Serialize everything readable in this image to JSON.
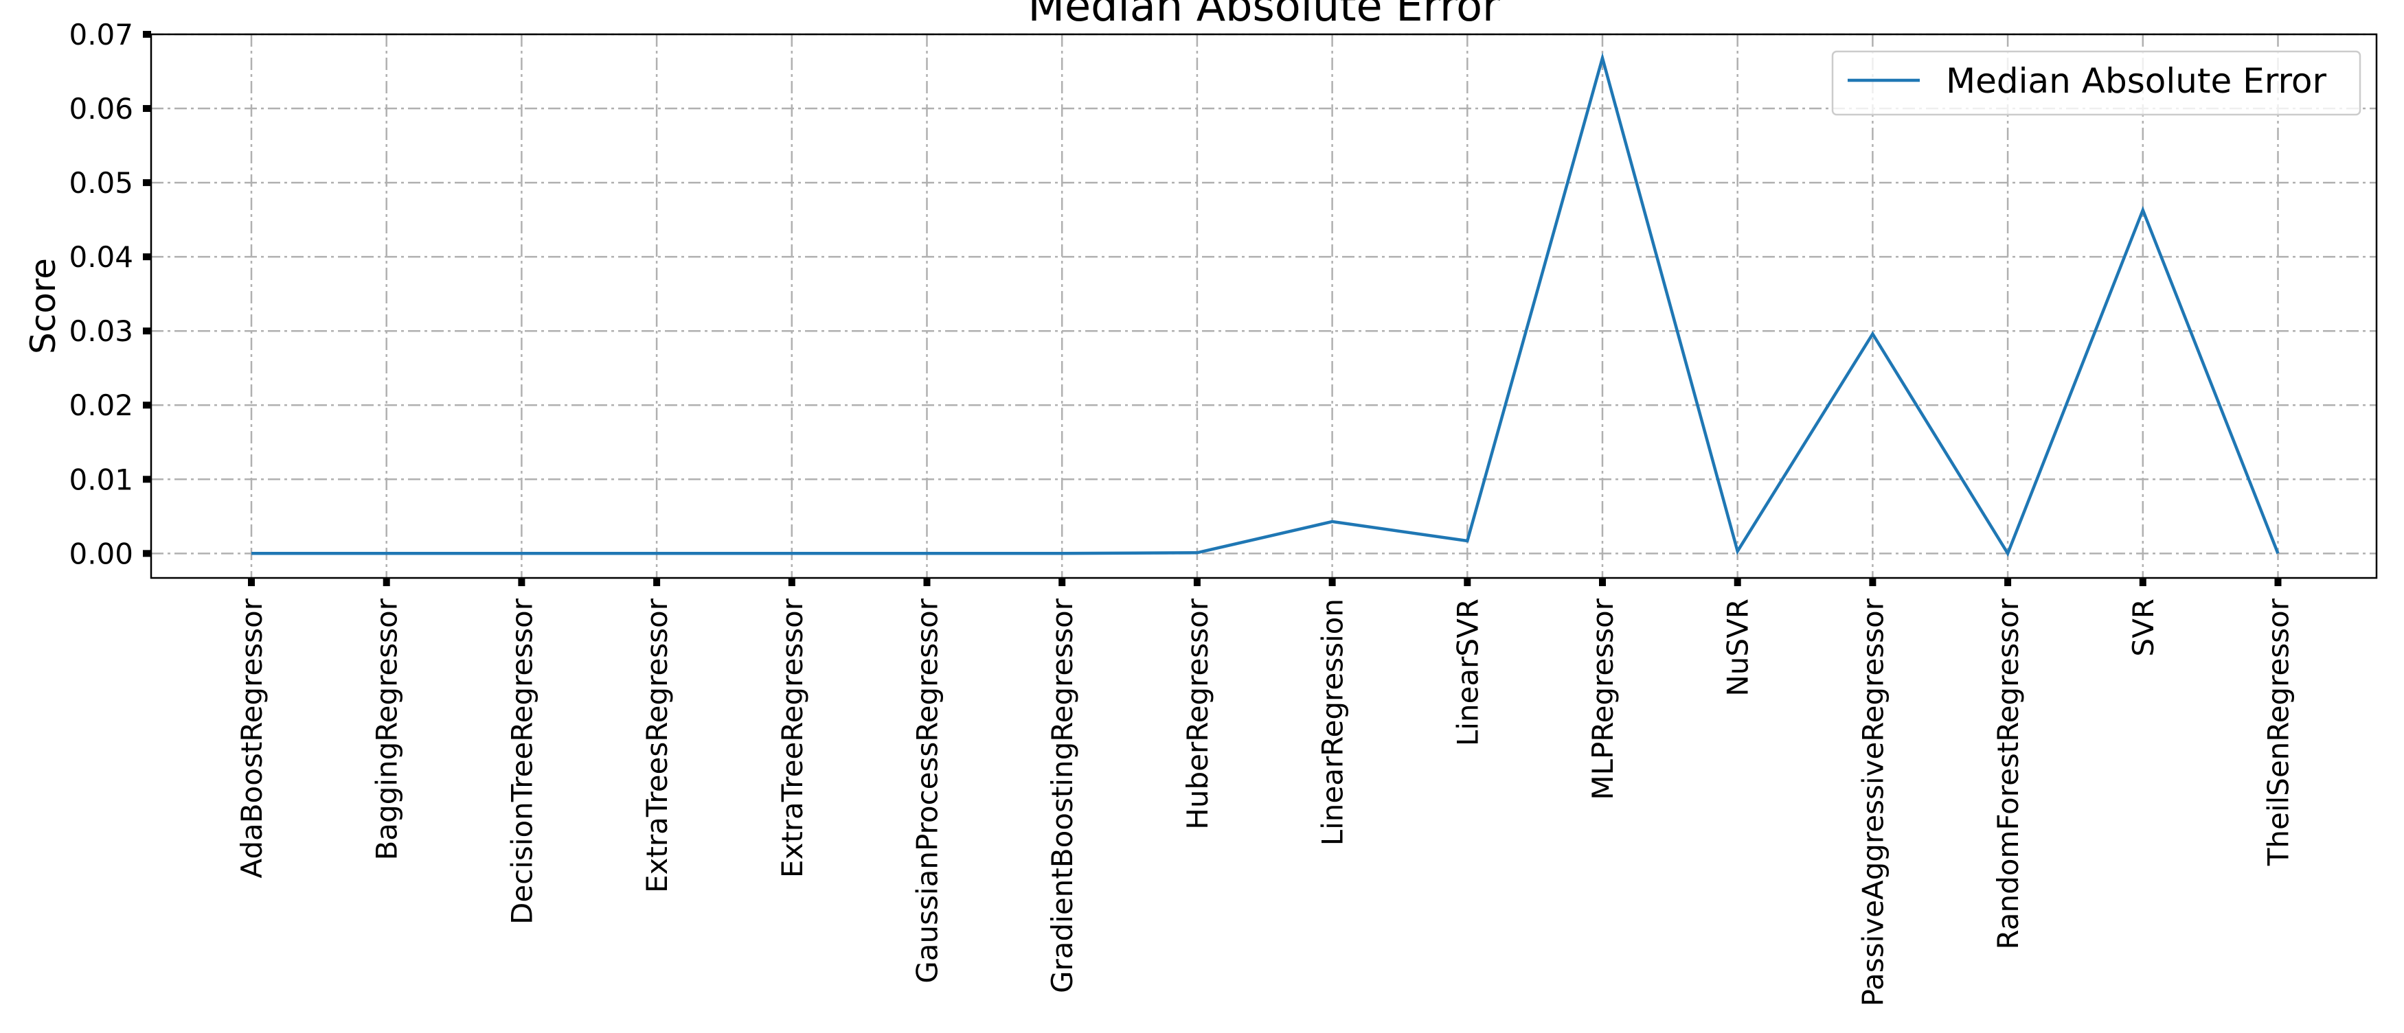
{
  "chart_data": {
    "type": "line",
    "title": "Median Absolute Error",
    "xlabel": "",
    "ylabel": "Score",
    "categories": [
      "AdaBoostRegressor",
      "BaggingRegressor",
      "DecisionTreeRegressor",
      "ExtraTreesRegressor",
      "ExtraTreeRegressor",
      "GaussianProcessRegressor",
      "GradientBoostingRegressor",
      "HuberRegressor",
      "LinearRegression",
      "LinearSVR",
      "MLPRegressor",
      "NuSVR",
      "PassiveAggressiveRegressor",
      "RandomForestRegressor",
      "SVR",
      "TheilSenRegressor"
    ],
    "series": [
      {
        "name": "Median Absolute Error",
        "color": "#1f77b4",
        "values": [
          0.0,
          0.0,
          0.0,
          0.0,
          0.0,
          0.0,
          0.0,
          0.0001,
          0.0043,
          0.0017,
          0.0668,
          0.0003,
          0.0296,
          0.0,
          0.0463,
          0.0
        ]
      }
    ],
    "ylim": [
      -0.0033,
      0.07
    ],
    "yticks": [
      "0.00",
      "0.01",
      "0.02",
      "0.03",
      "0.04",
      "0.05",
      "0.06",
      "0.07"
    ],
    "ytick_values": [
      0.0,
      0.01,
      0.02,
      0.03,
      0.04,
      0.05,
      0.06,
      0.07
    ],
    "grid": true,
    "legend_position": "top-right"
  }
}
